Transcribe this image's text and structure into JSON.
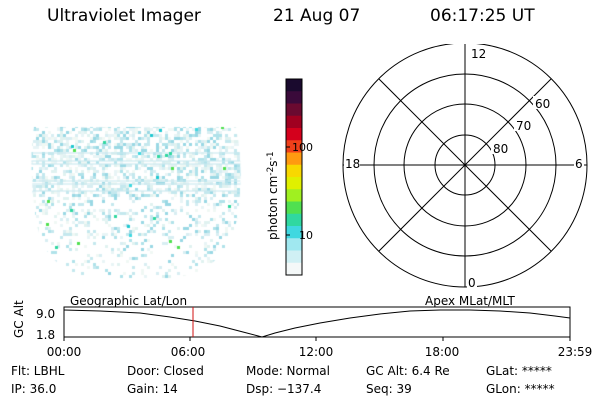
{
  "header": {
    "instrument": "Ultraviolet Imager",
    "date": "21 Aug 07",
    "time": "06:17:25 UT"
  },
  "colorbar": {
    "unit_label": "photon cm",
    "unit_sup1": "-2",
    "unit_mid": "s",
    "unit_sup2": "-1",
    "tick_labels": [
      "100",
      "10"
    ],
    "colors": [
      "#1a0a2e",
      "#3a0a3a",
      "#6a0a30",
      "#a00020",
      "#d4001c",
      "#f0401a",
      "#ff9a10",
      "#f8d800",
      "#e0f000",
      "#a0f020",
      "#50e050",
      "#30d8a0",
      "#40d8e0",
      "#a0e8f0",
      "#d0f0f4",
      "#f4f8f8"
    ]
  },
  "polar": {
    "mlt_labels": {
      "top": "12",
      "bottom": "0",
      "left": "18",
      "right": "6"
    },
    "lat_labels": [
      "60",
      "70",
      "80"
    ]
  },
  "timeline": {
    "left_label": "Geographic Lat/Lon",
    "right_label": "Apex MLat/MLT",
    "axis_title": "GC Alt",
    "y_ticks": [
      "9.0",
      "1.8"
    ],
    "x_ticks": [
      "00:00",
      "06:00",
      "12:00",
      "18:00",
      "23:59"
    ],
    "current_time_marker": "06:17"
  },
  "info": {
    "flt": "Flt: LBHL",
    "door": "Door: Closed",
    "mode": "Mode: Normal",
    "gc_alt": "GC Alt: 6.4 Re",
    "glat": "GLat: *****",
    "ip": "IP: 36.0",
    "gain": "Gain: 14",
    "dsp": "Dsp: −137.4",
    "seq": "Seq: 39",
    "glon": "GLon: *****"
  }
}
